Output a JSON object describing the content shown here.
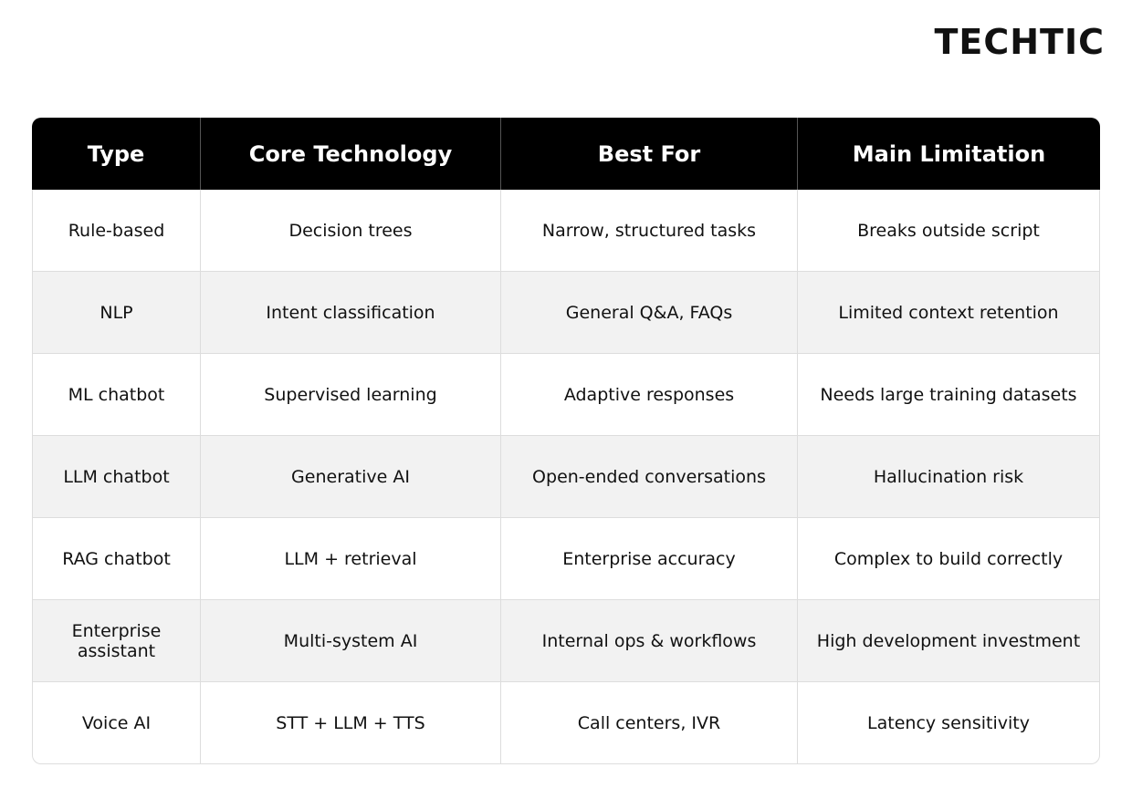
{
  "header": {
    "logo": "TECHTIC"
  },
  "table": {
    "columns": [
      "Type",
      "Core Technology",
      "Best For",
      "Main Limitation"
    ],
    "rows": [
      [
        "Rule-based",
        "Decision trees",
        "Narrow, structured tasks",
        "Breaks outside script"
      ],
      [
        "NLP",
        "Intent classification",
        "General Q&A, FAQs",
        "Limited context retention"
      ],
      [
        "ML chatbot",
        "Supervised learning",
        "Adaptive responses",
        "Needs large training datasets"
      ],
      [
        "LLM chatbot",
        "Generative AI",
        "Open-ended conversations",
        "Hallucination risk"
      ],
      [
        "RAG chatbot",
        "LLM + retrieval",
        "Enterprise accuracy",
        "Complex to build correctly"
      ],
      [
        "Enterprise assistant",
        "Multi-system AI",
        "Internal ops & workflows",
        "High development investment"
      ],
      [
        "Voice AI",
        "STT + LLM + TTS",
        "Call centers, IVR",
        "Latency sensitivity"
      ]
    ]
  }
}
